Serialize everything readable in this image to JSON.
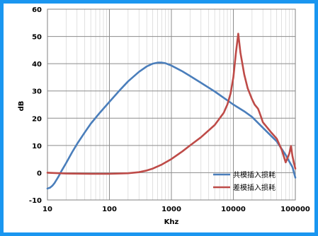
{
  "chart_data": {
    "type": "line",
    "title": "",
    "xlabel": "Khz",
    "ylabel": "dB",
    "x_scale": "log",
    "xlim": [
      10,
      100000
    ],
    "ylim": [
      -10,
      60
    ],
    "x_ticks": [
      "10",
      "100",
      "1000",
      "10000",
      "100000"
    ],
    "y_ticks": [
      "-10",
      "0",
      "10",
      "20",
      "30",
      "40",
      "50",
      "60"
    ],
    "grid": true,
    "legend_position": "bottom-right",
    "series": [
      {
        "name": "共模插入损耗",
        "color": "#4a7ebb",
        "points": [
          [
            10,
            -5.8
          ],
          [
            11,
            -5.5
          ],
          [
            12,
            -4.8
          ],
          [
            13,
            -3.8
          ],
          [
            14,
            -2.6
          ],
          [
            15,
            -1.5
          ],
          [
            17,
            0.8
          ],
          [
            20,
            3.5
          ],
          [
            25,
            7.5
          ],
          [
            30,
            10.5
          ],
          [
            40,
            14.8
          ],
          [
            50,
            18.0
          ],
          [
            70,
            22.0
          ],
          [
            100,
            26.0
          ],
          [
            150,
            30.5
          ],
          [
            200,
            33.5
          ],
          [
            300,
            37.0
          ],
          [
            400,
            39.0
          ],
          [
            500,
            40.0
          ],
          [
            600,
            40.4
          ],
          [
            700,
            40.4
          ],
          [
            800,
            40.2
          ],
          [
            1000,
            39.3
          ],
          [
            1500,
            37.2
          ],
          [
            2000,
            35.5
          ],
          [
            3000,
            33.0
          ],
          [
            5000,
            29.8
          ],
          [
            7000,
            27.5
          ],
          [
            10000,
            25.0
          ],
          [
            15000,
            22.5
          ],
          [
            20000,
            20.5
          ],
          [
            30000,
            16.5
          ],
          [
            50000,
            11.5
          ],
          [
            70000,
            6.5
          ],
          [
            90000,
            2.0
          ],
          [
            100000,
            -1.8
          ]
        ]
      },
      {
        "name": "差模插入损耗",
        "color": "#be4b48",
        "points": [
          [
            10,
            0.0
          ],
          [
            20,
            -0.3
          ],
          [
            50,
            -0.4
          ],
          [
            100,
            -0.4
          ],
          [
            200,
            -0.2
          ],
          [
            300,
            0.2
          ],
          [
            400,
            0.8
          ],
          [
            500,
            1.5
          ],
          [
            700,
            3.0
          ],
          [
            1000,
            5.0
          ],
          [
            1500,
            7.8
          ],
          [
            2000,
            10.0
          ],
          [
            3000,
            13.0
          ],
          [
            5000,
            17.5
          ],
          [
            7000,
            22.0
          ],
          [
            8000,
            25.0
          ],
          [
            9000,
            29.0
          ],
          [
            10000,
            35.0
          ],
          [
            11000,
            44.0
          ],
          [
            12000,
            51.0
          ],
          [
            13000,
            44.0
          ],
          [
            15000,
            36.0
          ],
          [
            17000,
            31.0
          ],
          [
            20000,
            27.0
          ],
          [
            22000,
            25.0
          ],
          [
            25000,
            23.5
          ],
          [
            26000,
            22.5
          ],
          [
            28000,
            20.5
          ],
          [
            30000,
            18.5
          ],
          [
            40000,
            15.0
          ],
          [
            50000,
            12.5
          ],
          [
            60000,
            8.5
          ],
          [
            70000,
            3.8
          ],
          [
            80000,
            7.0
          ],
          [
            85000,
            9.8
          ],
          [
            90000,
            6.0
          ],
          [
            95000,
            3.5
          ],
          [
            100000,
            1.5
          ]
        ]
      }
    ]
  }
}
